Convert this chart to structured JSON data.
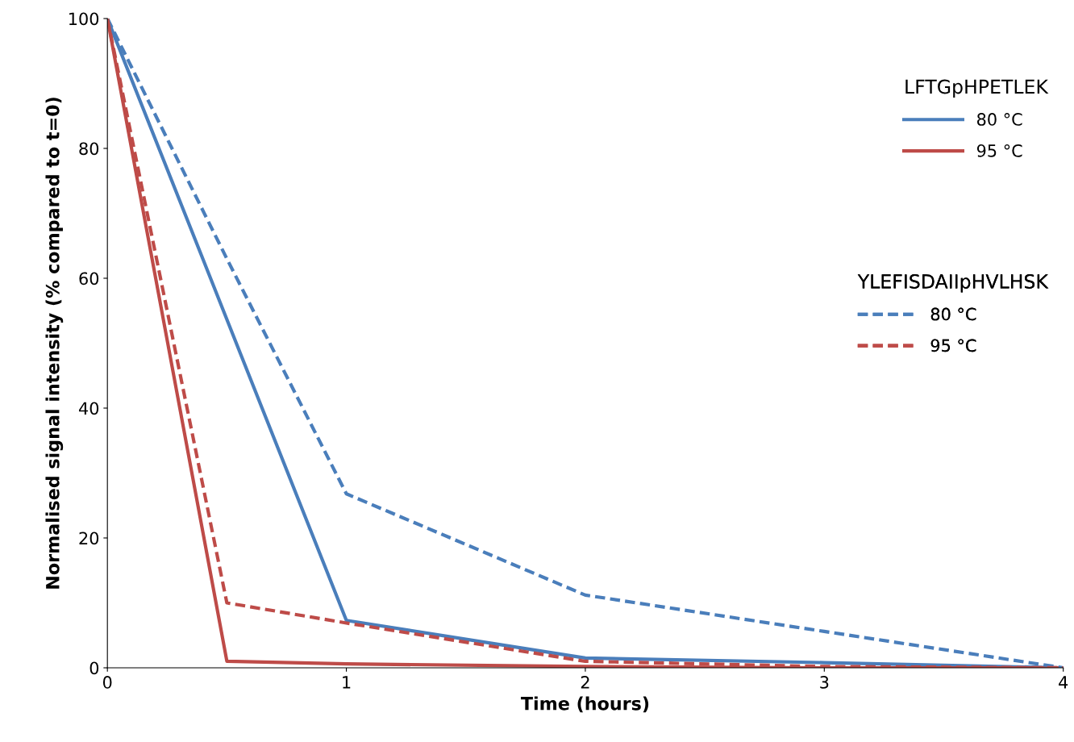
{
  "chart_data": {
    "type": "line",
    "xlabel": "Time (hours)",
    "ylabel": "Normalised signal intensity (% compared to t=0)",
    "x": [
      0,
      0.5,
      1,
      2,
      3,
      4
    ],
    "series": [
      {
        "name": "80 °C",
        "color": "#4a7ebb",
        "line_style": "solid",
        "x": [
          0,
          1,
          2,
          3,
          4
        ],
        "values": [
          100,
          7.3,
          1.5,
          0.8,
          0
        ]
      },
      {
        "name": "95 °C",
        "color": "#be4b48",
        "line_style": "solid",
        "values": [
          100,
          1.0,
          0.6,
          0.2,
          0,
          0
        ]
      },
      {
        "name": "80 °C",
        "color": "#4a7ebb",
        "line_style": "dashed",
        "values": [
          100,
          63,
          26.8,
          11.2,
          5.6,
          0
        ]
      },
      {
        "name": "95 °C",
        "color": "#be4b48",
        "line_style": "dashed",
        "values": [
          100,
          10,
          6.9,
          1,
          0.2,
          0
        ]
      }
    ],
    "legend_title": [
      "LFTGpHPETLEK",
      "YLEFISDAIIpHVLHSK"
    ],
    "xlim": [
      0,
      4
    ],
    "xticks": [
      0,
      1,
      2,
      3,
      4
    ],
    "ylim": [
      0,
      100
    ],
    "yticks": [
      0,
      20,
      40,
      60,
      80,
      100
    ],
    "grid": false,
    "legend": "top right",
    "marker": "none"
  }
}
